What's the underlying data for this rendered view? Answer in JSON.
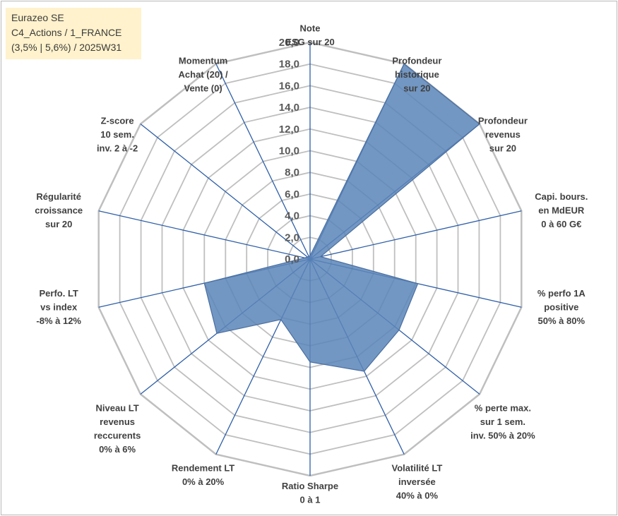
{
  "header": {
    "line1": "Eurazeo SE",
    "line2": "C4_Actions / 1_FRANCE",
    "line3": "(3,5% | 5,6%) / 2025W31"
  },
  "colors": {
    "fill": "#5a85b8",
    "stroke": "#4a6fa0",
    "axis": "#2e5fa8",
    "grid": "#bfbfbf",
    "title_bg": "#fff2cc"
  },
  "chart_data": {
    "type": "radar",
    "rmin": 0,
    "rmax": 20,
    "tick_step": 2,
    "grid": true,
    "ticks": [
      "0,0",
      "2,0",
      "4,0",
      "6,0",
      "8,0",
      "10,0",
      "12,0",
      "14,0",
      "16,0",
      "18,0",
      "20,0"
    ],
    "axes": [
      {
        "label": [
          "Note",
          "ESG sur 20"
        ],
        "value": 0.3
      },
      {
        "label": [
          "Profondeur",
          "historique",
          "sur 20"
        ],
        "value": 20
      },
      {
        "label": [
          "Profondeur",
          "revenus",
          "sur 20"
        ],
        "value": 20
      },
      {
        "label": [
          "Capi. bours.",
          "en MdEUR",
          "0 à 60 G€"
        ],
        "value": 1.0
      },
      {
        "label": [
          "% perfo 1A",
          "positive",
          "50% à 80%"
        ],
        "value": 10.2
      },
      {
        "label": [
          "% perte max.",
          "sur 1 sem.",
          "inv. 50% à 20%"
        ],
        "value": 10.5
      },
      {
        "label": [
          "Volatilité LT",
          "inversée",
          "40% à 0%"
        ],
        "value": 11.5
      },
      {
        "label": [
          "Ratio Sharpe",
          "0 à 1"
        ],
        "value": 9.5
      },
      {
        "label": [
          "Rendement LT",
          "0% à 20%"
        ],
        "value": 6.2
      },
      {
        "label": [
          "Niveau LT",
          "revenus",
          "reccurents",
          "0% à 6%"
        ],
        "value": 11.0
      },
      {
        "label": [
          "Perfo. LT",
          "vs index",
          "-8% à 12%"
        ],
        "value": 10.0
      },
      {
        "label": [
          "Régularité",
          "croissance",
          "sur 20"
        ],
        "value": 0.5
      },
      {
        "label": [
          "Z-score",
          "10 sem.",
          "inv. 2 à -2"
        ],
        "value": 0.3
      },
      {
        "label": [
          "Momentum",
          "Achat (20) /",
          "Vente (0)"
        ],
        "value": 0.3
      }
    ]
  }
}
